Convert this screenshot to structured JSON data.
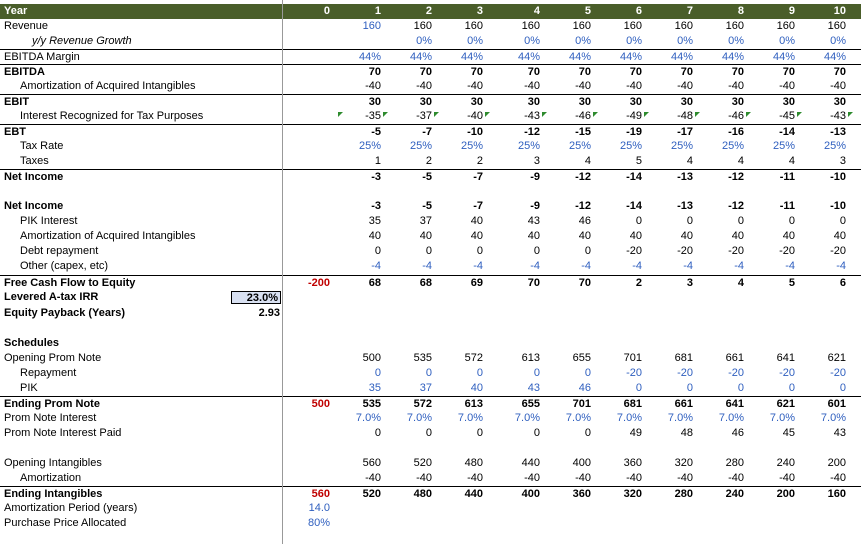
{
  "header": {
    "label": "Year",
    "years": [
      "0",
      "1",
      "2",
      "3",
      "4",
      "5",
      "6",
      "7",
      "8",
      "9",
      "10"
    ]
  },
  "income": {
    "revenue": {
      "label": "Revenue",
      "values": [
        "",
        "160",
        "160",
        "160",
        "160",
        "160",
        "160",
        "160",
        "160",
        "160",
        "160"
      ]
    },
    "growth": {
      "label": "y/y Revenue Growth",
      "values": [
        "",
        "",
        "0%",
        "0%",
        "0%",
        "0%",
        "0%",
        "0%",
        "0%",
        "0%",
        "0%"
      ]
    },
    "margin": {
      "label": "EBITDA Margin",
      "values": [
        "",
        "44%",
        "44%",
        "44%",
        "44%",
        "44%",
        "44%",
        "44%",
        "44%",
        "44%",
        "44%"
      ]
    },
    "ebitda": {
      "label": "EBITDA",
      "values": [
        "",
        "70",
        "70",
        "70",
        "70",
        "70",
        "70",
        "70",
        "70",
        "70",
        "70"
      ]
    },
    "amort": {
      "label": "Amortization of Acquired Intangibles",
      "values": [
        "",
        "-40",
        "-40",
        "-40",
        "-40",
        "-40",
        "-40",
        "-40",
        "-40",
        "-40",
        "-40"
      ]
    },
    "ebit": {
      "label": "EBIT",
      "values": [
        "",
        "30",
        "30",
        "30",
        "30",
        "30",
        "30",
        "30",
        "30",
        "30",
        "30"
      ]
    },
    "interest": {
      "label": "Interest Recognized for Tax Purposes",
      "values": [
        "",
        "-35",
        "-37",
        "-40",
        "-43",
        "-46",
        "-49",
        "-48",
        "-46",
        "-45",
        "-43"
      ]
    },
    "ebt": {
      "label": "EBT",
      "values": [
        "",
        "-5",
        "-7",
        "-10",
        "-12",
        "-15",
        "-19",
        "-17",
        "-16",
        "-14",
        "-13"
      ]
    },
    "taxrate": {
      "label": "Tax Rate",
      "values": [
        "",
        "25%",
        "25%",
        "25%",
        "25%",
        "25%",
        "25%",
        "25%",
        "25%",
        "25%",
        "25%"
      ]
    },
    "taxes": {
      "label": "Taxes",
      "values": [
        "",
        "1",
        "2",
        "2",
        "3",
        "4",
        "5",
        "4",
        "4",
        "4",
        "3"
      ]
    },
    "netincome": {
      "label": "Net Income",
      "values": [
        "",
        "-3",
        "-5",
        "-7",
        "-9",
        "-12",
        "-14",
        "-13",
        "-12",
        "-11",
        "-10"
      ]
    }
  },
  "cashflow": {
    "netincome": {
      "label": "Net Income",
      "values": [
        "",
        "-3",
        "-5",
        "-7",
        "-9",
        "-12",
        "-14",
        "-13",
        "-12",
        "-11",
        "-10"
      ]
    },
    "pik": {
      "label": "PIK Interest",
      "values": [
        "",
        "35",
        "37",
        "40",
        "43",
        "46",
        "0",
        "0",
        "0",
        "0",
        "0"
      ]
    },
    "amort": {
      "label": "Amortization of Acquired Intangibles",
      "values": [
        "",
        "40",
        "40",
        "40",
        "40",
        "40",
        "40",
        "40",
        "40",
        "40",
        "40"
      ]
    },
    "debt": {
      "label": "Debt repayment",
      "values": [
        "",
        "0",
        "0",
        "0",
        "0",
        "0",
        "-20",
        "-20",
        "-20",
        "-20",
        "-20"
      ]
    },
    "other": {
      "label": "Other (capex, etc)",
      "values": [
        "",
        "-4",
        "-4",
        "-4",
        "-4",
        "-4",
        "-4",
        "-4",
        "-4",
        "-4",
        "-4"
      ]
    },
    "fcf": {
      "label": "Free Cash Flow to Equity",
      "values": [
        "-200",
        "68",
        "68",
        "69",
        "70",
        "70",
        "2",
        "3",
        "4",
        "5",
        "6"
      ]
    },
    "irr": {
      "label": "Levered A-tax IRR",
      "value": "23.0%"
    },
    "payback": {
      "label": "Equity Payback (Years)",
      "value": "2.93"
    }
  },
  "schedules": {
    "title": "Schedules",
    "opening": {
      "label": "Opening Prom Note",
      "values": [
        "",
        "500",
        "535",
        "572",
        "613",
        "655",
        "701",
        "681",
        "661",
        "641",
        "621"
      ]
    },
    "repayment": {
      "label": "Repayment",
      "values": [
        "",
        "0",
        "0",
        "0",
        "0",
        "0",
        "-20",
        "-20",
        "-20",
        "-20",
        "-20"
      ]
    },
    "pik": {
      "label": "PIK",
      "values": [
        "",
        "35",
        "37",
        "40",
        "43",
        "46",
        "0",
        "0",
        "0",
        "0",
        "0"
      ]
    },
    "ending": {
      "label": "Ending Prom Note",
      "values": [
        "500",
        "535",
        "572",
        "613",
        "655",
        "701",
        "681",
        "661",
        "641",
        "621",
        "601"
      ]
    },
    "rate": {
      "label": "Prom Note Interest",
      "values": [
        "",
        "7.0%",
        "7.0%",
        "7.0%",
        "7.0%",
        "7.0%",
        "7.0%",
        "7.0%",
        "7.0%",
        "7.0%",
        "7.0%"
      ]
    },
    "paid": {
      "label": "Prom Note Interest Paid",
      "values": [
        "",
        "0",
        "0",
        "0",
        "0",
        "0",
        "49",
        "48",
        "46",
        "45",
        "43"
      ]
    },
    "openint": {
      "label": "Opening Intangibles",
      "values": [
        "",
        "560",
        "520",
        "480",
        "440",
        "400",
        "360",
        "320",
        "280",
        "240",
        "200"
      ]
    },
    "amortization": {
      "label": "Amortization",
      "values": [
        "",
        "-40",
        "-40",
        "-40",
        "-40",
        "-40",
        "-40",
        "-40",
        "-40",
        "-40",
        "-40"
      ]
    },
    "endint": {
      "label": "Ending Intangibles",
      "values": [
        "560",
        "520",
        "480",
        "440",
        "400",
        "360",
        "320",
        "280",
        "240",
        "200",
        "160"
      ]
    },
    "period": {
      "label": "Amortization Period (years)",
      "value": "14.0"
    },
    "alloc": {
      "label": "Purchase Price Allocated",
      "value": "80%"
    }
  },
  "colors": {
    "header_bg": "#4a5e2a",
    "input_blue": "#2f5fbf",
    "negative_red": "#c00000",
    "irr_fill": "#d9e1f2"
  }
}
